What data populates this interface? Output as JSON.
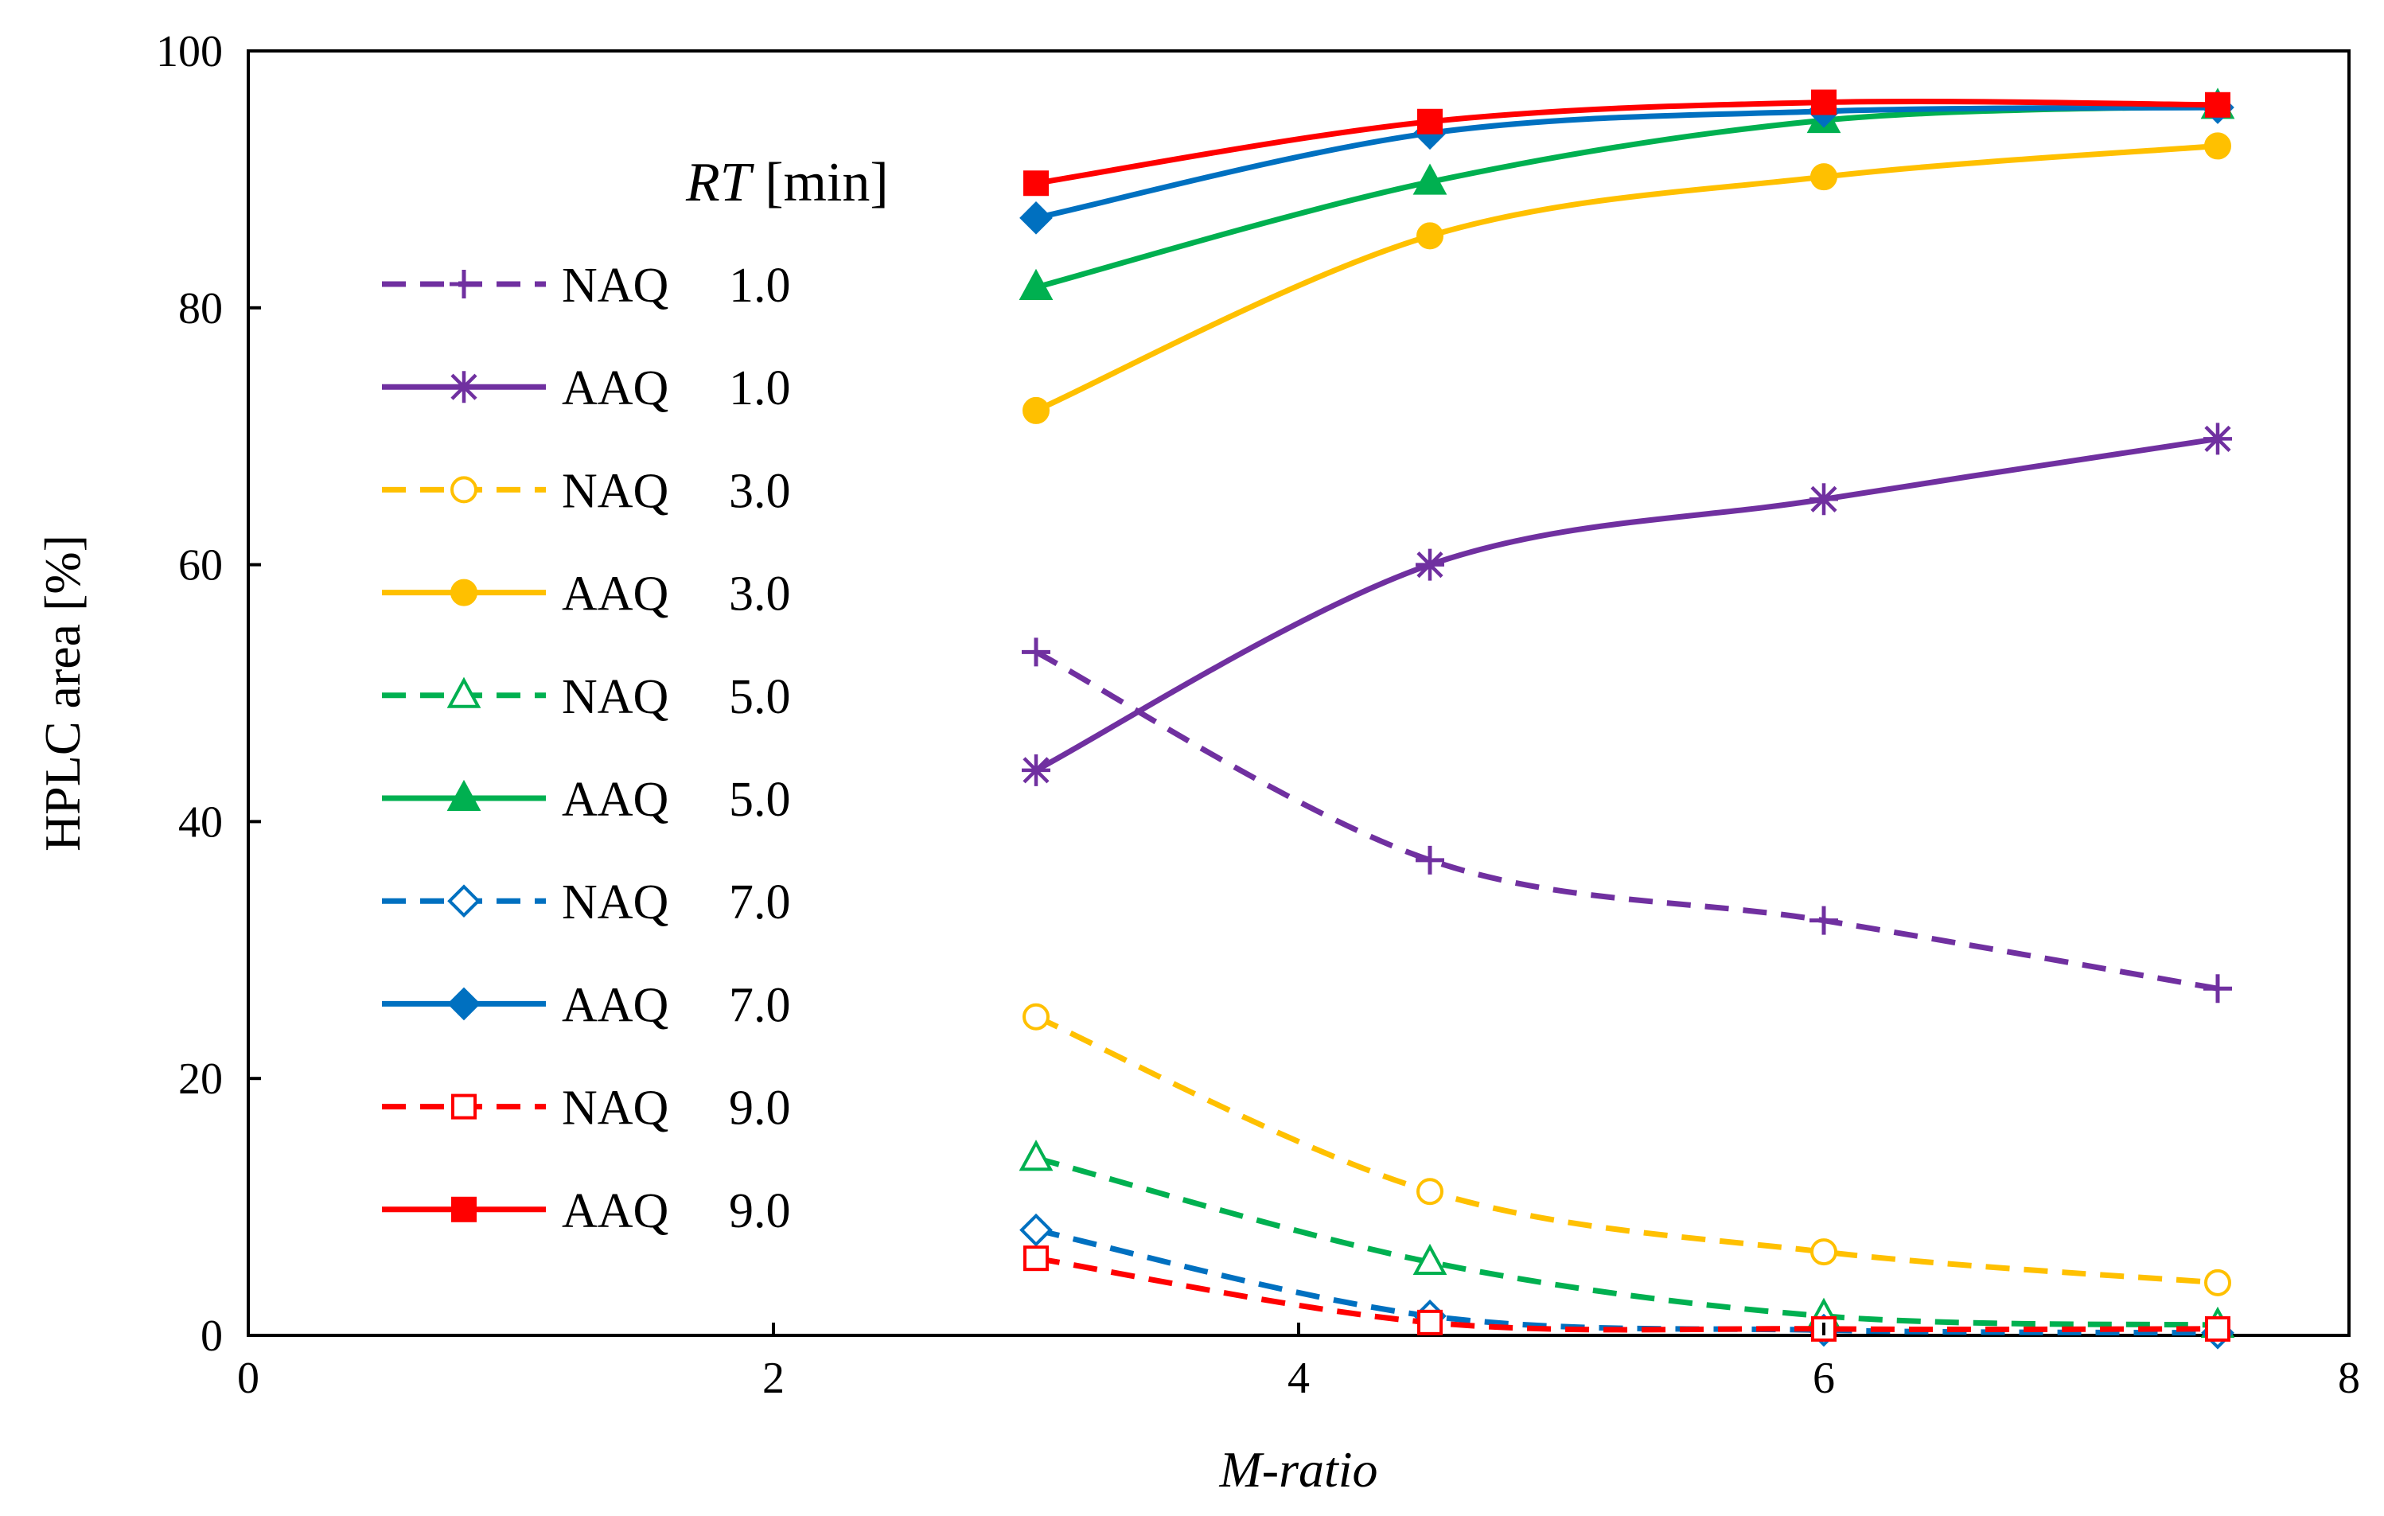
{
  "chart_data": {
    "type": "line",
    "title": "",
    "xlabel": "M-ratio",
    "ylabel": "HPLC area [%]",
    "xlim": [
      0,
      8
    ],
    "ylim": [
      0,
      100
    ],
    "xticks": [
      0,
      2,
      4,
      6,
      8
    ],
    "yticks": [
      0,
      20,
      40,
      60,
      80,
      100
    ],
    "grid": false,
    "legend_title_italic": "RT",
    "legend_title_rest": " [min]",
    "x": [
      3,
      4.5,
      6,
      7.5
    ],
    "series": [
      {
        "name": "NAQ",
        "rt": "1.0",
        "color": "#7030A0",
        "dash": true,
        "marker": "plus",
        "values": [
          53.2,
          37.0,
          32.3,
          27.0
        ]
      },
      {
        "name": "AAQ",
        "rt": "1.0",
        "color": "#7030A0",
        "dash": false,
        "marker": "star",
        "values": [
          44.0,
          60.0,
          65.1,
          69.8
        ]
      },
      {
        "name": "NAQ",
        "rt": "3.0",
        "color": "#FFC000",
        "dash": true,
        "marker": "circle-open",
        "values": [
          24.8,
          11.2,
          6.5,
          4.1
        ]
      },
      {
        "name": "AAQ",
        "rt": "3.0",
        "color": "#FFC000",
        "dash": false,
        "marker": "circle",
        "values": [
          72.0,
          85.6,
          90.2,
          92.6
        ]
      },
      {
        "name": "NAQ",
        "rt": "5.0",
        "color": "#00B050",
        "dash": true,
        "marker": "triangle-open",
        "values": [
          13.8,
          5.7,
          1.5,
          0.8
        ]
      },
      {
        "name": "AAQ",
        "rt": "5.0",
        "color": "#00B050",
        "dash": false,
        "marker": "triangle",
        "values": [
          81.6,
          89.8,
          94.6,
          95.7
        ]
      },
      {
        "name": "NAQ",
        "rt": "7.0",
        "color": "#0070C0",
        "dash": true,
        "marker": "diamond-open",
        "values": [
          8.2,
          1.5,
          0.4,
          0.2
        ]
      },
      {
        "name": "AAQ",
        "rt": "7.0",
        "color": "#0070C0",
        "dash": false,
        "marker": "diamond",
        "values": [
          87.0,
          93.6,
          95.3,
          95.6
        ]
      },
      {
        "name": "NAQ",
        "rt": "9.0",
        "color": "#FF0000",
        "dash": true,
        "marker": "square-open",
        "values": [
          6.0,
          1.0,
          0.5,
          0.5
        ]
      },
      {
        "name": "AAQ",
        "rt": "9.0",
        "color": "#FF0000",
        "dash": false,
        "marker": "square",
        "values": [
          89.7,
          94.5,
          96.0,
          95.8
        ]
      }
    ]
  }
}
